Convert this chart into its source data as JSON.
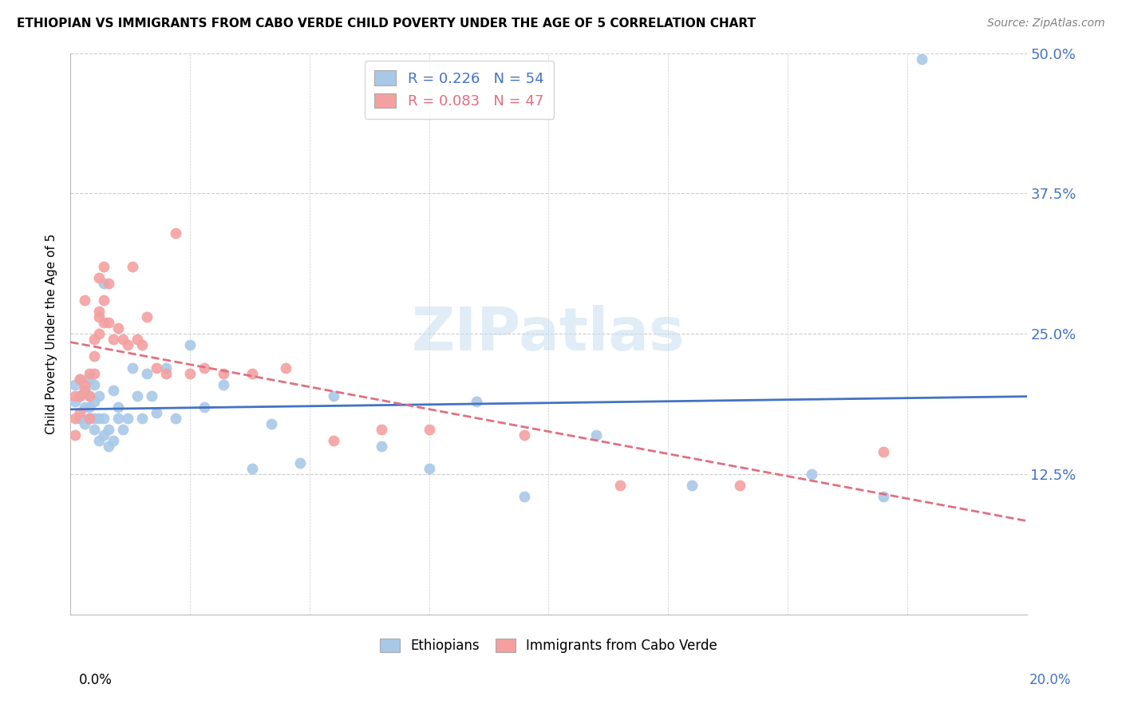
{
  "title": "ETHIOPIAN VS IMMIGRANTS FROM CABO VERDE CHILD POVERTY UNDER THE AGE OF 5 CORRELATION CHART",
  "source": "Source: ZipAtlas.com",
  "ylabel": "Child Poverty Under the Age of 5",
  "xlim": [
    0.0,
    0.2
  ],
  "ylim": [
    0.0,
    0.5
  ],
  "yticks": [
    0.0,
    0.125,
    0.25,
    0.375,
    0.5
  ],
  "ytick_labels": [
    "",
    "12.5%",
    "25.0%",
    "37.5%",
    "50.0%"
  ],
  "blue_color": "#a8c8e8",
  "pink_color": "#f4a0a0",
  "line_blue": "#4472c4",
  "line_pink": "#e07080",
  "watermark": "ZIPatlas",
  "ethiopians_x": [
    0.001,
    0.001,
    0.002,
    0.002,
    0.002,
    0.003,
    0.003,
    0.003,
    0.004,
    0.004,
    0.004,
    0.004,
    0.005,
    0.005,
    0.005,
    0.005,
    0.006,
    0.006,
    0.006,
    0.007,
    0.007,
    0.007,
    0.008,
    0.008,
    0.009,
    0.009,
    0.01,
    0.01,
    0.011,
    0.012,
    0.013,
    0.014,
    0.015,
    0.016,
    0.017,
    0.018,
    0.02,
    0.022,
    0.025,
    0.028,
    0.032,
    0.038,
    0.042,
    0.048,
    0.055,
    0.065,
    0.075,
    0.085,
    0.095,
    0.11,
    0.13,
    0.155,
    0.17,
    0.178
  ],
  "ethiopians_y": [
    0.19,
    0.205,
    0.175,
    0.195,
    0.21,
    0.17,
    0.185,
    0.2,
    0.175,
    0.185,
    0.195,
    0.21,
    0.165,
    0.175,
    0.19,
    0.205,
    0.155,
    0.175,
    0.195,
    0.16,
    0.175,
    0.295,
    0.15,
    0.165,
    0.155,
    0.2,
    0.175,
    0.185,
    0.165,
    0.175,
    0.22,
    0.195,
    0.175,
    0.215,
    0.195,
    0.18,
    0.22,
    0.175,
    0.24,
    0.185,
    0.205,
    0.13,
    0.17,
    0.135,
    0.195,
    0.15,
    0.13,
    0.19,
    0.105,
    0.16,
    0.115,
    0.125,
    0.105,
    0.495
  ],
  "caboverde_x": [
    0.001,
    0.001,
    0.001,
    0.002,
    0.002,
    0.002,
    0.003,
    0.003,
    0.003,
    0.004,
    0.004,
    0.004,
    0.005,
    0.005,
    0.005,
    0.006,
    0.006,
    0.006,
    0.006,
    0.007,
    0.007,
    0.007,
    0.008,
    0.008,
    0.009,
    0.01,
    0.011,
    0.012,
    0.013,
    0.014,
    0.015,
    0.016,
    0.018,
    0.02,
    0.022,
    0.025,
    0.028,
    0.032,
    0.038,
    0.045,
    0.055,
    0.065,
    0.075,
    0.095,
    0.115,
    0.14,
    0.17
  ],
  "caboverde_y": [
    0.195,
    0.175,
    0.16,
    0.21,
    0.195,
    0.18,
    0.205,
    0.28,
    0.2,
    0.175,
    0.215,
    0.195,
    0.215,
    0.23,
    0.245,
    0.27,
    0.25,
    0.265,
    0.3,
    0.28,
    0.31,
    0.26,
    0.295,
    0.26,
    0.245,
    0.255,
    0.245,
    0.24,
    0.31,
    0.245,
    0.24,
    0.265,
    0.22,
    0.215,
    0.34,
    0.215,
    0.22,
    0.215,
    0.215,
    0.22,
    0.155,
    0.165,
    0.165,
    0.16,
    0.115,
    0.115,
    0.145
  ]
}
